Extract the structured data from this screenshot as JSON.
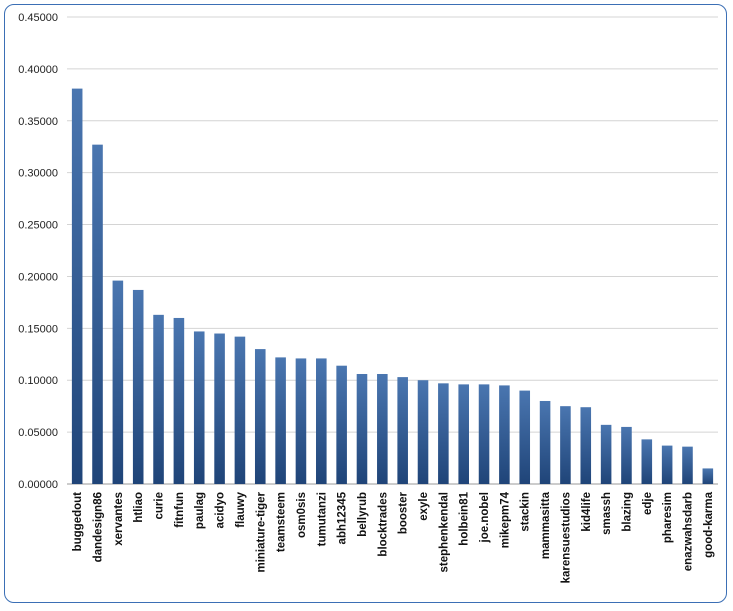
{
  "chart_data": {
    "type": "bar",
    "title": "",
    "xlabel": "",
    "ylabel": "",
    "ylim": [
      0,
      0.45
    ],
    "yticks": [
      0,
      0.05,
      0.1,
      0.15,
      0.2,
      0.25,
      0.3,
      0.35,
      0.4,
      0.45
    ],
    "ytick_labels": [
      "0.00000",
      "0.05000",
      "0.10000",
      "0.15000",
      "0.20000",
      "0.25000",
      "0.30000",
      "0.35000",
      "0.40000",
      "0.45000"
    ],
    "grid": true,
    "bar_color": "#2f5a91",
    "categories": [
      "buggedout",
      "dandesign86",
      "xervantes",
      "htliao",
      "curie",
      "fitnfun",
      "paulag",
      "acidyo",
      "flauwy",
      "miniature-tiger",
      "teamsteem",
      "osm0sis",
      "tumutanzi",
      "abh12345",
      "bellyrub",
      "blocktrades",
      "booster",
      "exyle",
      "stephenkendal",
      "holbein81",
      "joe.nobel",
      "mikepm74",
      "stackin",
      "mammasitta",
      "karensuestudios",
      "kid4life",
      "smassh",
      "blazing",
      "edje",
      "pharesim",
      "enazwahsdarb",
      "good-karma"
    ],
    "values": [
      0.381,
      0.327,
      0.196,
      0.187,
      0.163,
      0.16,
      0.147,
      0.145,
      0.142,
      0.13,
      0.122,
      0.121,
      0.121,
      0.114,
      0.106,
      0.106,
      0.103,
      0.1,
      0.097,
      0.096,
      0.096,
      0.095,
      0.09,
      0.08,
      0.075,
      0.074,
      0.057,
      0.055,
      0.043,
      0.037,
      0.036,
      0.015
    ]
  }
}
